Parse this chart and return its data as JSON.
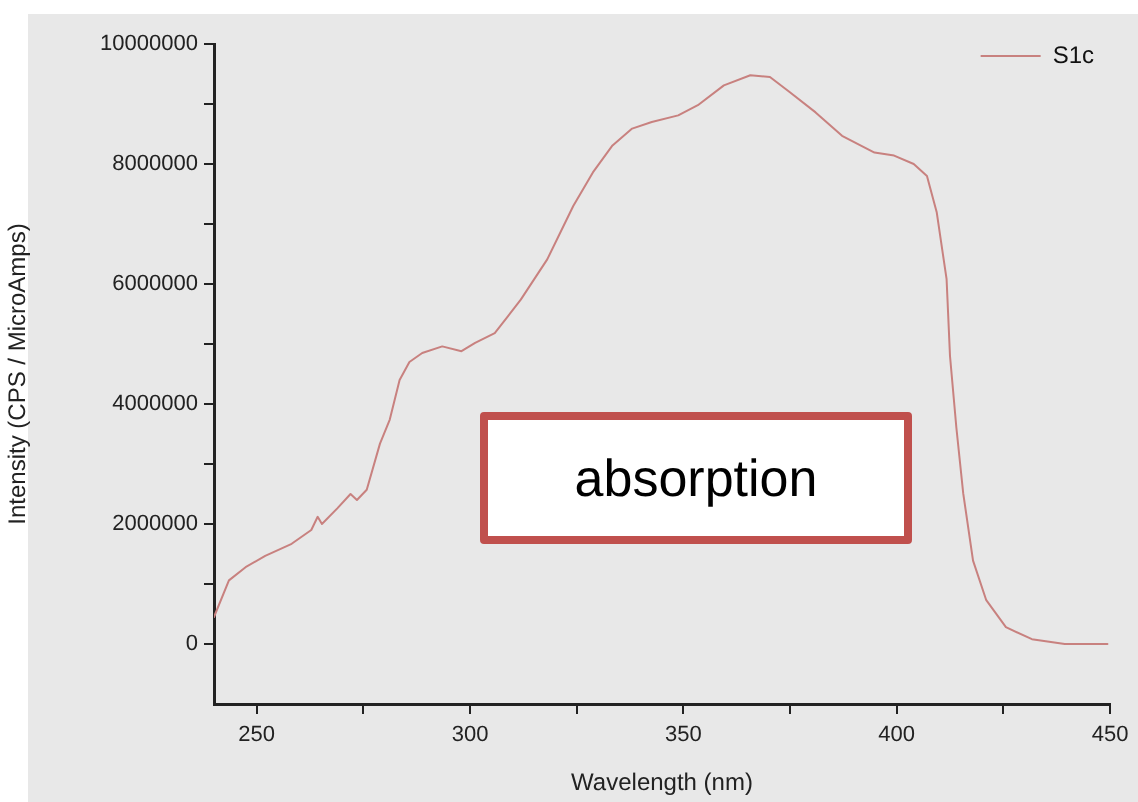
{
  "chart_data": {
    "type": "line",
    "xlabel": "Wavelength (nm)",
    "ylabel": "Intensity (CPS / MicroAmps)",
    "x": [
      240,
      243.5,
      247.4,
      252,
      258.2,
      262.8,
      264.3,
      265.3,
      268.9,
      272,
      273.5,
      275.8,
      278.9,
      281.2,
      283.5,
      285.8,
      288.8,
      293.5,
      298,
      301.2,
      305.8,
      311.9,
      318.1,
      324.2,
      328.8,
      333.4,
      338,
      342.6,
      348.8,
      353.4,
      359.5,
      365.7,
      370.3,
      374.9,
      381,
      387.2,
      394.8,
      399.4,
      404,
      407.1,
      409.4,
      411.7,
      412.5,
      414,
      415.6,
      417.9,
      421,
      425.6,
      431.7,
      439.4,
      449.4
    ],
    "series": [
      {
        "name": "S1c",
        "color": "#c8817f",
        "values": [
          450000,
          1060000,
          1280000,
          1470000,
          1670000,
          1900000,
          2120000,
          2000000,
          2260000,
          2500000,
          2400000,
          2570000,
          3340000,
          3740000,
          4400000,
          4700000,
          4850000,
          4960000,
          4880000,
          5020000,
          5180000,
          5740000,
          6410000,
          7300000,
          7860000,
          8310000,
          8590000,
          8700000,
          8810000,
          8980000,
          9310000,
          9480000,
          9450000,
          9200000,
          8860000,
          8470000,
          8190000,
          8140000,
          8000000,
          7800000,
          7190000,
          6080000,
          4800000,
          3600000,
          2510000,
          1390000,
          730000,
          280000,
          80000,
          0,
          0
        ]
      }
    ],
    "xlim": [
      240,
      450
    ],
    "xticks": [
      250,
      {
        "value": 275,
        "label": null
      },
      300,
      {
        "value": 325,
        "label": null
      },
      350,
      {
        "value": 375,
        "label": null
      },
      400,
      {
        "value": 425,
        "label": null
      },
      450
    ],
    "ylim": [
      -1000000,
      10000000
    ],
    "yticks": [
      0,
      {
        "value": 1000000,
        "label": null
      },
      2000000,
      {
        "value": 3000000,
        "label": null
      },
      4000000,
      {
        "value": 5000000,
        "label": null
      },
      6000000,
      {
        "value": 7000000,
        "label": null
      },
      8000000,
      {
        "value": 9000000,
        "label": null
      },
      10000000
    ],
    "legend": "top right",
    "annotations": [
      "absorption"
    ]
  }
}
